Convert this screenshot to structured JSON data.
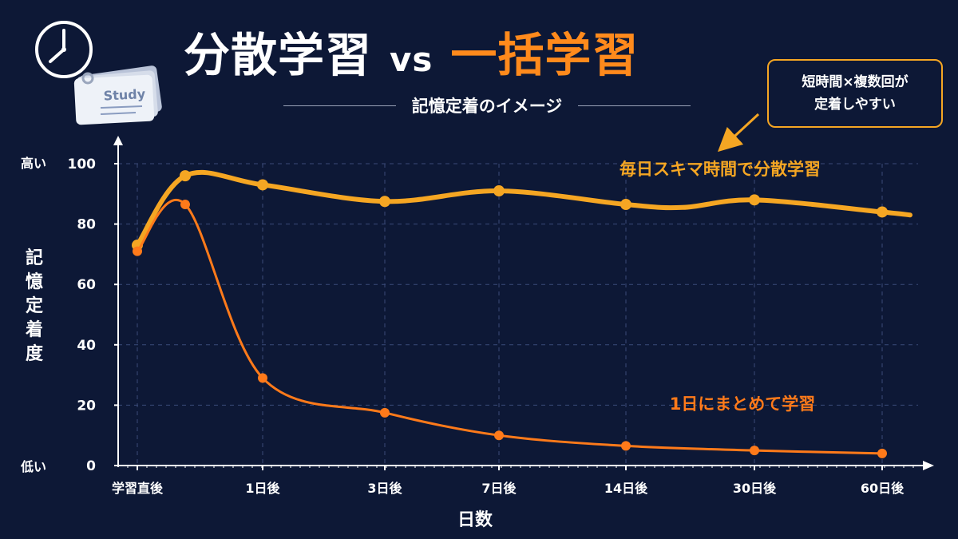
{
  "header": {
    "title_left": "分散学習",
    "title_vs": "vs",
    "title_right": "一括学習",
    "subtitle": "記憶定着のイメージ",
    "icon_card_text": "Study"
  },
  "callout": {
    "line1": "短時間×複数回が",
    "line2": "定着しやすい"
  },
  "colors": {
    "background": "#0d1836",
    "spaced": "#f5a623",
    "massed": "#ff7a1a",
    "accent_title": "#ff8a1c"
  },
  "chart_data": {
    "type": "line",
    "title": "分散学習 vs 一括学習",
    "subtitle": "記憶定着のイメージ",
    "xlabel": "日数",
    "ylabel": "記憶定着度",
    "ylim": [
      0,
      100
    ],
    "y_ticks": [
      0,
      20,
      40,
      60,
      80,
      100
    ],
    "y_end_labels": {
      "top": "高い",
      "bottom": "低い"
    },
    "x_tick_labels": [
      "学習直後",
      "1日後",
      "3日後",
      "7日後",
      "14日後",
      "30日後",
      "60日後"
    ],
    "grid": true,
    "series": [
      {
        "name": "毎日スキマ時間で分散学習",
        "color": "#f5a623",
        "points": [
          [
            "学習直後",
            73
          ],
          [
            "",
            96
          ],
          [
            "1日後",
            93
          ],
          [
            "3日後",
            87.5
          ],
          [
            "7日後",
            91
          ],
          [
            "14日後",
            86.5
          ],
          [
            "",
            85.5
          ],
          [
            "30日後",
            88
          ],
          [
            "60日後",
            84
          ],
          [
            "",
            83
          ]
        ]
      },
      {
        "name": "1日にまとめて学習",
        "color": "#ff7a1a",
        "points": [
          [
            "学習直後",
            71
          ],
          [
            "",
            86.5
          ],
          [
            "1日後",
            29
          ],
          [
            "3日後",
            17.5
          ],
          [
            "7日後",
            10
          ],
          [
            "14日後",
            6.5
          ],
          [
            "30日後",
            5
          ],
          [
            "60日後",
            4
          ]
        ]
      }
    ]
  }
}
